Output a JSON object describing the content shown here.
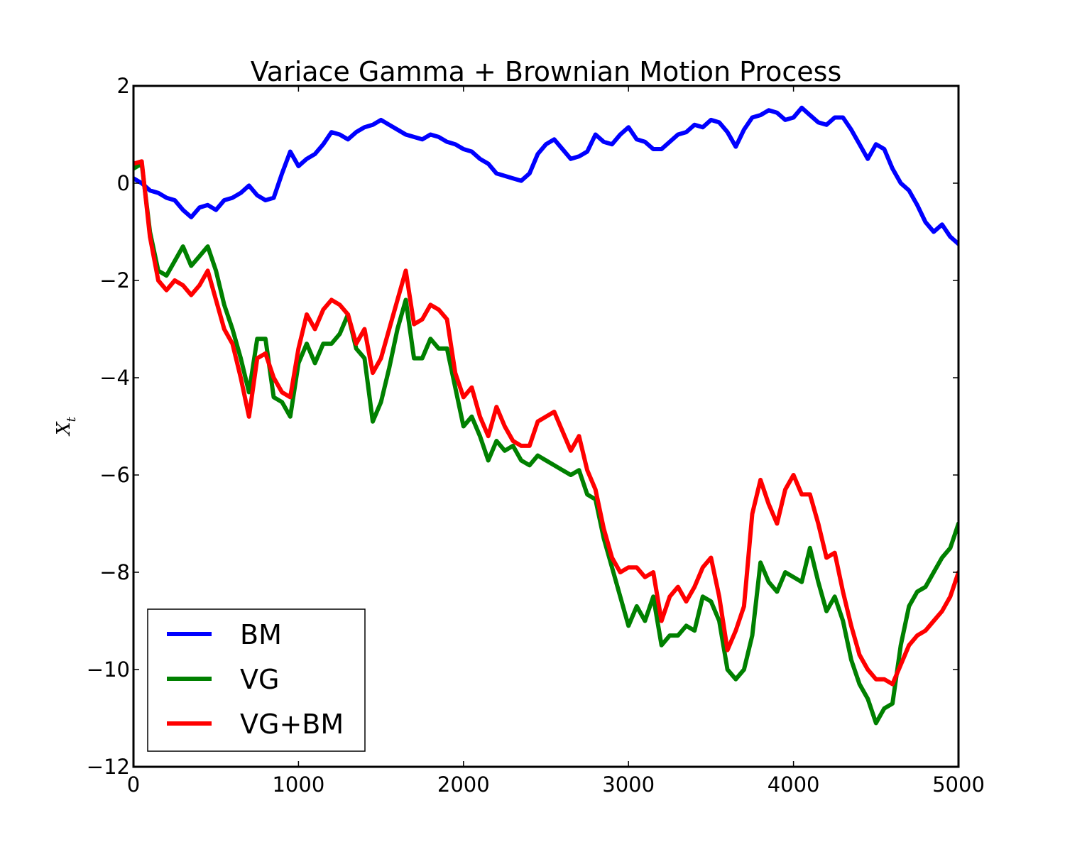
{
  "chart_data": {
    "type": "line",
    "title": "Variace Gamma + Brownian Motion Process",
    "xlabel": "",
    "ylabel": "X_t",
    "ylabel_main": "X",
    "ylabel_sub": "t",
    "xlim": [
      0,
      5000
    ],
    "ylim": [
      -12,
      2
    ],
    "x_ticks": [
      0,
      1000,
      2000,
      3000,
      4000,
      5000
    ],
    "x_tick_labels": [
      "0",
      "1000",
      "2000",
      "3000",
      "4000",
      "5000"
    ],
    "y_ticks": [
      2,
      0,
      -2,
      -4,
      -6,
      -8,
      -10,
      -12
    ],
    "y_tick_labels": [
      "2",
      "0",
      "−2",
      "−4",
      "−6",
      "−8",
      "−10",
      "−12"
    ],
    "grid": false,
    "legend_position": "lower-left",
    "series": [
      {
        "name": "BM",
        "color": "#0000ff",
        "x": [
          0,
          50,
          100,
          150,
          200,
          250,
          300,
          350,
          400,
          450,
          500,
          550,
          600,
          650,
          700,
          750,
          800,
          850,
          900,
          950,
          1000,
          1050,
          1100,
          1150,
          1200,
          1250,
          1300,
          1350,
          1400,
          1450,
          1500,
          1550,
          1600,
          1650,
          1700,
          1750,
          1800,
          1850,
          1900,
          1950,
          2000,
          2050,
          2100,
          2150,
          2200,
          2250,
          2300,
          2350,
          2400,
          2450,
          2500,
          2550,
          2600,
          2650,
          2700,
          2750,
          2800,
          2850,
          2900,
          2950,
          3000,
          3050,
          3100,
          3150,
          3200,
          3250,
          3300,
          3350,
          3400,
          3450,
          3500,
          3550,
          3600,
          3650,
          3700,
          3750,
          3800,
          3850,
          3900,
          3950,
          4000,
          4050,
          4100,
          4150,
          4200,
          4250,
          4300,
          4350,
          4400,
          4450,
          4500,
          4550,
          4600,
          4650,
          4700,
          4750,
          4800,
          4850,
          4900,
          4950,
          5000
        ],
        "y": [
          0.1,
          0.0,
          -0.15,
          -0.2,
          -0.3,
          -0.35,
          -0.55,
          -0.7,
          -0.5,
          -0.45,
          -0.55,
          -0.35,
          -0.3,
          -0.2,
          -0.05,
          -0.25,
          -0.35,
          -0.3,
          0.2,
          0.65,
          0.35,
          0.5,
          0.6,
          0.8,
          1.05,
          1.0,
          0.9,
          1.05,
          1.15,
          1.2,
          1.3,
          1.2,
          1.1,
          1.0,
          0.95,
          0.9,
          1.0,
          0.95,
          0.85,
          0.8,
          0.7,
          0.65,
          0.5,
          0.4,
          0.2,
          0.15,
          0.1,
          0.05,
          0.2,
          0.6,
          0.8,
          0.9,
          0.7,
          0.5,
          0.55,
          0.65,
          1.0,
          0.85,
          0.8,
          1.0,
          1.15,
          0.9,
          0.85,
          0.7,
          0.7,
          0.85,
          1.0,
          1.05,
          1.2,
          1.15,
          1.3,
          1.25,
          1.05,
          0.75,
          1.1,
          1.35,
          1.4,
          1.5,
          1.45,
          1.3,
          1.35,
          1.55,
          1.4,
          1.25,
          1.2,
          1.35,
          1.35,
          1.1,
          0.8,
          0.5,
          0.8,
          0.7,
          0.3,
          0.0,
          -0.15,
          -0.45,
          -0.8,
          -1.0,
          -0.85,
          -1.1,
          -1.25
        ]
      },
      {
        "name": "VG",
        "color": "#008000",
        "x": [
          0,
          50,
          100,
          150,
          200,
          250,
          300,
          350,
          400,
          450,
          500,
          550,
          600,
          650,
          700,
          750,
          800,
          850,
          900,
          950,
          1000,
          1050,
          1100,
          1150,
          1200,
          1250,
          1300,
          1350,
          1400,
          1450,
          1500,
          1550,
          1600,
          1650,
          1700,
          1750,
          1800,
          1850,
          1900,
          1950,
          2000,
          2050,
          2100,
          2150,
          2200,
          2250,
          2300,
          2350,
          2400,
          2450,
          2500,
          2550,
          2600,
          2650,
          2700,
          2750,
          2800,
          2850,
          2900,
          2950,
          3000,
          3050,
          3100,
          3150,
          3200,
          3250,
          3300,
          3350,
          3400,
          3450,
          3500,
          3550,
          3600,
          3650,
          3700,
          3750,
          3800,
          3850,
          3900,
          3950,
          4000,
          4050,
          4100,
          4150,
          4200,
          4250,
          4300,
          4350,
          4400,
          4450,
          4500,
          4550,
          4600,
          4650,
          4700,
          4750,
          4800,
          4850,
          4900,
          4950,
          5000
        ],
        "y": [
          0.3,
          0.4,
          -1.0,
          -1.8,
          -1.9,
          -1.6,
          -1.3,
          -1.7,
          -1.5,
          -1.3,
          -1.8,
          -2.5,
          -3.0,
          -3.6,
          -4.3,
          -3.2,
          -3.2,
          -4.4,
          -4.5,
          -4.8,
          -3.7,
          -3.3,
          -3.7,
          -3.3,
          -3.3,
          -3.1,
          -2.7,
          -3.4,
          -3.6,
          -4.9,
          -4.5,
          -3.8,
          -3.0,
          -2.4,
          -3.6,
          -3.6,
          -3.2,
          -3.4,
          -3.4,
          -4.2,
          -5.0,
          -4.8,
          -5.2,
          -5.7,
          -5.3,
          -5.5,
          -5.4,
          -5.7,
          -5.8,
          -5.6,
          -5.7,
          -5.8,
          -5.9,
          -6.0,
          -5.9,
          -6.4,
          -6.5,
          -7.3,
          -7.9,
          -8.5,
          -9.1,
          -8.7,
          -9.0,
          -8.5,
          -9.5,
          -9.3,
          -9.3,
          -9.1,
          -9.2,
          -8.5,
          -8.6,
          -9.0,
          -10.0,
          -10.2,
          -10.0,
          -9.3,
          -7.8,
          -8.2,
          -8.4,
          -8.0,
          -8.1,
          -8.2,
          -7.5,
          -8.2,
          -8.8,
          -8.5,
          -9.0,
          -9.8,
          -10.3,
          -10.6,
          -11.1,
          -10.8,
          -10.7,
          -9.5,
          -8.7,
          -8.4,
          -8.3,
          -8.0,
          -7.7,
          -7.5,
          -7.0
        ]
      },
      {
        "name": "VG+BM",
        "color": "#ff0000",
        "x": [
          0,
          50,
          100,
          150,
          200,
          250,
          300,
          350,
          400,
          450,
          500,
          550,
          600,
          650,
          700,
          750,
          800,
          850,
          900,
          950,
          1000,
          1050,
          1100,
          1150,
          1200,
          1250,
          1300,
          1350,
          1400,
          1450,
          1500,
          1550,
          1600,
          1650,
          1700,
          1750,
          1800,
          1850,
          1900,
          1950,
          2000,
          2050,
          2100,
          2150,
          2200,
          2250,
          2300,
          2350,
          2400,
          2450,
          2500,
          2550,
          2600,
          2650,
          2700,
          2750,
          2800,
          2850,
          2900,
          2950,
          3000,
          3050,
          3100,
          3150,
          3200,
          3250,
          3300,
          3350,
          3400,
          3450,
          3500,
          3550,
          3600,
          3650,
          3700,
          3750,
          3800,
          3850,
          3900,
          3950,
          4000,
          4050,
          4100,
          4150,
          4200,
          4250,
          4300,
          4350,
          4400,
          4450,
          4500,
          4550,
          4600,
          4650,
          4700,
          4750,
          4800,
          4850,
          4900,
          4950,
          5000
        ],
        "y": [
          0.4,
          0.45,
          -1.1,
          -2.0,
          -2.2,
          -2.0,
          -2.1,
          -2.3,
          -2.1,
          -1.8,
          -2.4,
          -3.0,
          -3.3,
          -4.0,
          -4.8,
          -3.6,
          -3.5,
          -4.0,
          -4.3,
          -4.4,
          -3.4,
          -2.7,
          -3.0,
          -2.6,
          -2.4,
          -2.5,
          -2.7,
          -3.3,
          -3.0,
          -3.9,
          -3.6,
          -3.0,
          -2.4,
          -1.8,
          -2.9,
          -2.8,
          -2.5,
          -2.6,
          -2.8,
          -3.9,
          -4.4,
          -4.2,
          -4.8,
          -5.2,
          -4.6,
          -5.0,
          -5.3,
          -5.4,
          -5.4,
          -4.9,
          -4.8,
          -4.7,
          -5.1,
          -5.5,
          -5.2,
          -5.9,
          -6.3,
          -7.1,
          -7.7,
          -8.0,
          -7.9,
          -7.9,
          -8.1,
          -8.0,
          -9.0,
          -8.5,
          -8.3,
          -8.6,
          -8.3,
          -7.9,
          -7.7,
          -8.5,
          -9.6,
          -9.2,
          -8.7,
          -6.8,
          -6.1,
          -6.6,
          -7.0,
          -6.3,
          -6.0,
          -6.4,
          -6.4,
          -7.0,
          -7.7,
          -7.6,
          -8.4,
          -9.1,
          -9.7,
          -10.0,
          -10.2,
          -10.2,
          -10.3,
          -9.9,
          -9.5,
          -9.3,
          -9.2,
          -9.0,
          -8.8,
          -8.5,
          -8.0
        ]
      }
    ]
  }
}
